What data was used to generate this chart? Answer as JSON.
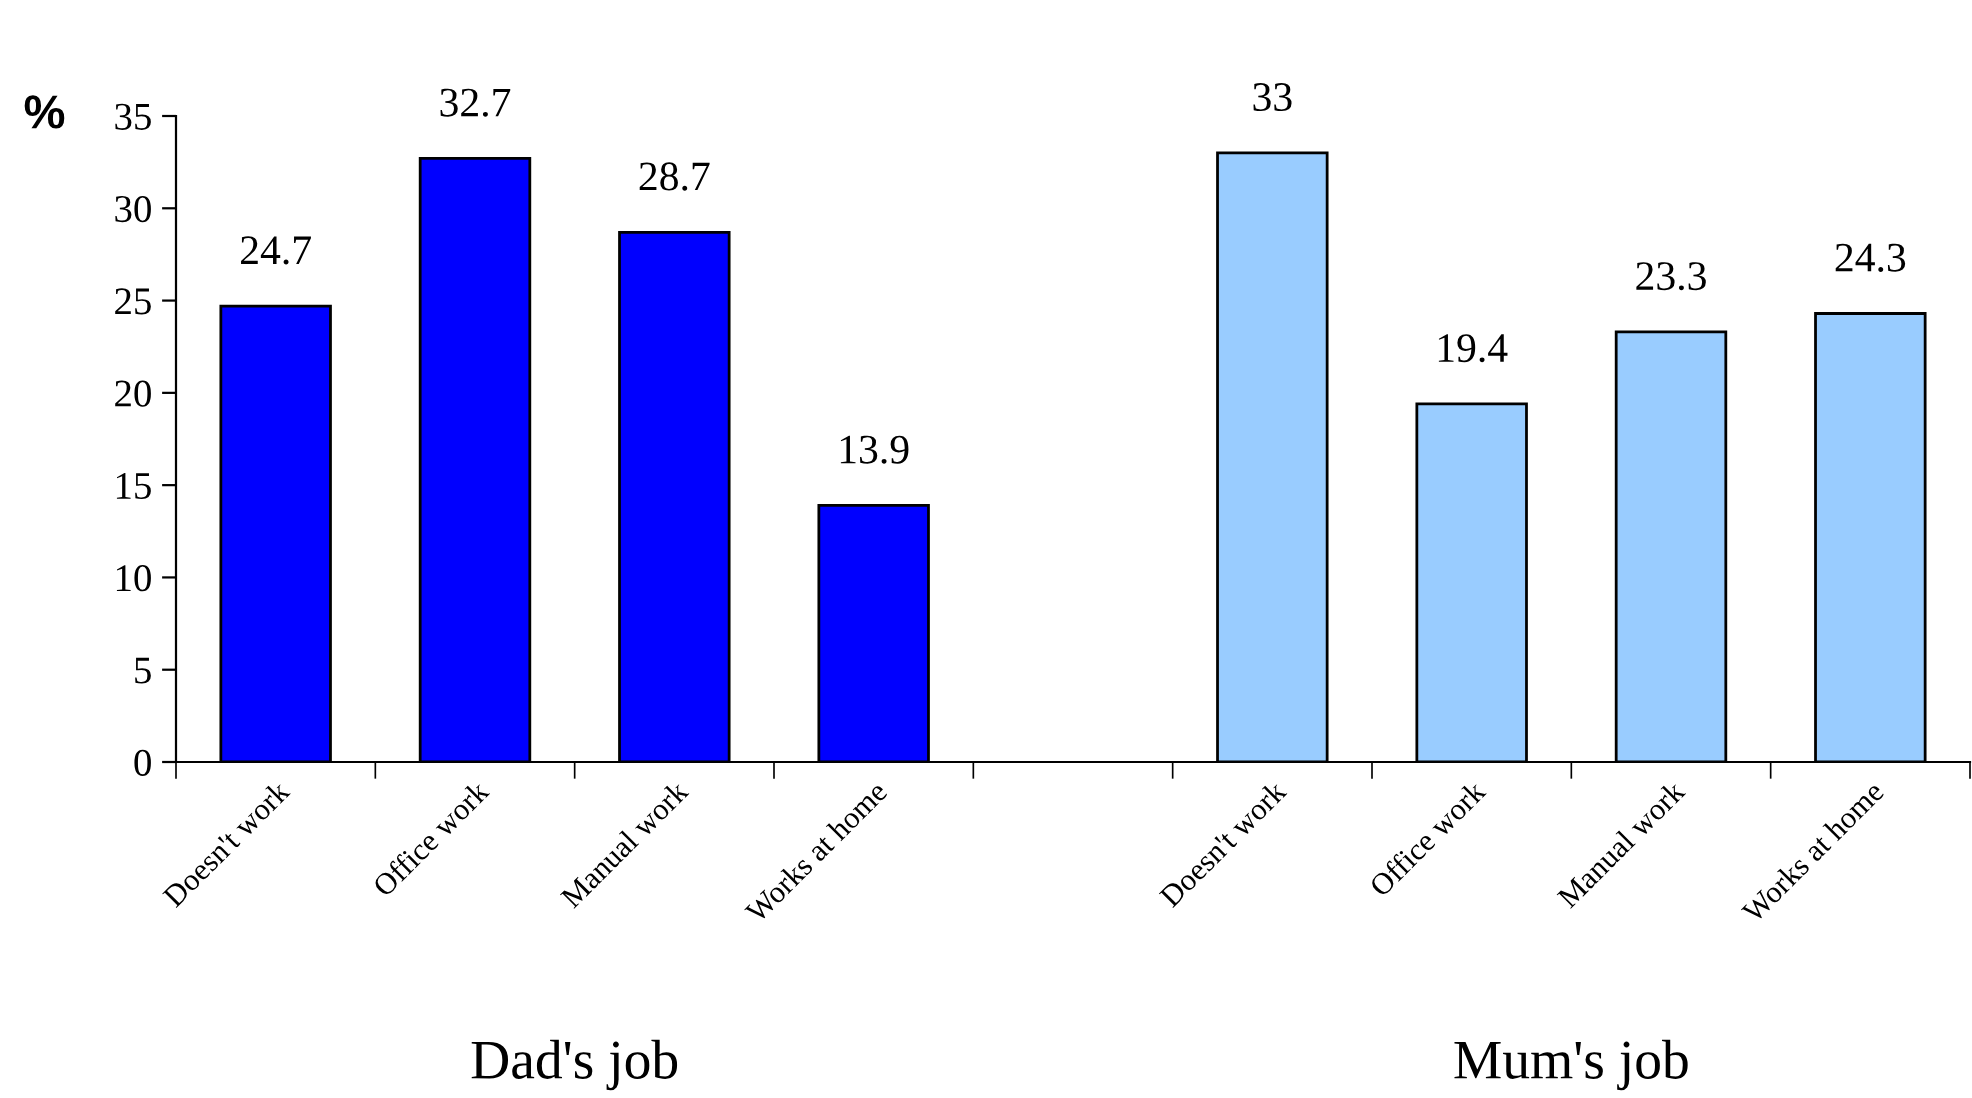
{
  "chart_data": {
    "type": "bar",
    "ylabel": "%",
    "categories": [
      "Doesn't work",
      "Office work",
      "Manual work",
      "Works at home",
      null,
      "Doesn't work",
      "Office work",
      "Manual work",
      "Works at home"
    ],
    "values": [
      24.7,
      32.7,
      28.7,
      13.9,
      null,
      33,
      19.4,
      23.3,
      24.3
    ],
    "colors": [
      "#0000ff",
      "#0000ff",
      "#0000ff",
      "#0000ff",
      "#0000ff",
      "#99ccff",
      "#99ccff",
      "#99ccff",
      "#99ccff"
    ],
    "ylim": [
      0,
      35
    ],
    "yticks": [
      0,
      5,
      10,
      15,
      20,
      25,
      30,
      35
    ],
    "data_labels": true,
    "grid": false,
    "legend": false,
    "annotations": [
      "Dad's job",
      "Mum's job"
    ]
  }
}
